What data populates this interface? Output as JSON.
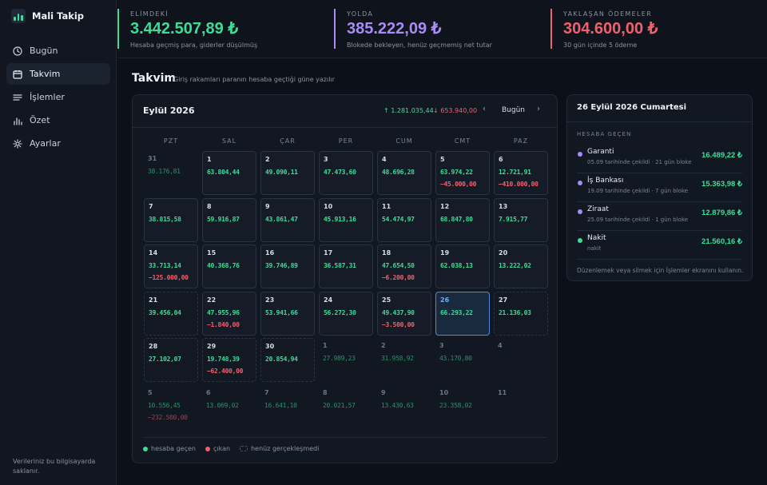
{
  "brand": {
    "name": "Mali Takip"
  },
  "sidebar": {
    "items": [
      {
        "label": "Bugün",
        "icon": "clock-icon"
      },
      {
        "label": "Takvim",
        "icon": "calendar-icon"
      },
      {
        "label": "İşlemler",
        "icon": "list-icon"
      },
      {
        "label": "Özet",
        "icon": "chart-icon"
      },
      {
        "label": "Ayarlar",
        "icon": "gear-icon"
      }
    ],
    "footnote": "Verileriniz bu bilgisayarda saklanır."
  },
  "stats": [
    {
      "label": "ELİMDEKİ",
      "value": "3.442.507,89 ₺",
      "sub": "Hesaba geçmiş para, giderler düşülmüş",
      "color": "#3ddc97"
    },
    {
      "label": "YOLDA",
      "value": "385.222,09 ₺",
      "sub": "Blokede bekleyen, henüz geçmemiş net tutar",
      "color": "#a98bf5"
    },
    {
      "label": "YAKLAŞAN ÖDEMELER",
      "value": "304.600,00 ₺",
      "sub": "30 gün içinde 5 ödeme",
      "color": "#f0616d"
    }
  ],
  "page": {
    "title": "Takvim",
    "subtitle": "Giriş rakamları paranın hesaba geçtiği güne yazılır"
  },
  "calendar": {
    "month": "Eylül 2026",
    "total_in": "↑ 1.281.035,44",
    "total_out": "↓ 653.940,00",
    "prev": "‹",
    "today": "Bugün",
    "next": "›",
    "weekdays": [
      "PZT",
      "SAL",
      "ÇAR",
      "PER",
      "CUM",
      "CMT",
      "PAZ"
    ],
    "days": [
      {
        "n": "31",
        "in": "38.176,81",
        "out": "",
        "state": "outside"
      },
      {
        "n": "1",
        "in": "63.804,44",
        "out": "",
        "state": "normal"
      },
      {
        "n": "2",
        "in": "49.090,11",
        "out": "",
        "state": "normal"
      },
      {
        "n": "3",
        "in": "47.473,60",
        "out": "",
        "state": "normal"
      },
      {
        "n": "4",
        "in": "48.696,28",
        "out": "",
        "state": "normal"
      },
      {
        "n": "5",
        "in": "63.974,22",
        "out": "−45.000,00",
        "state": "normal"
      },
      {
        "n": "6",
        "in": "12.721,91",
        "out": "−410.000,00",
        "state": "normal"
      },
      {
        "n": "7",
        "in": "38.815,58",
        "out": "",
        "state": "normal"
      },
      {
        "n": "8",
        "in": "59.916,87",
        "out": "",
        "state": "normal"
      },
      {
        "n": "9",
        "in": "43.861,47",
        "out": "",
        "state": "normal"
      },
      {
        "n": "10",
        "in": "45.913,16",
        "out": "",
        "state": "normal"
      },
      {
        "n": "11",
        "in": "54.474,97",
        "out": "",
        "state": "normal"
      },
      {
        "n": "12",
        "in": "68.847,80",
        "out": "",
        "state": "normal"
      },
      {
        "n": "13",
        "in": "7.915,77",
        "out": "",
        "state": "normal"
      },
      {
        "n": "14",
        "in": "33.713,14",
        "out": "−125.000,00",
        "state": "normal"
      },
      {
        "n": "15",
        "in": "40.368,76",
        "out": "",
        "state": "normal"
      },
      {
        "n": "16",
        "in": "39.746,89",
        "out": "",
        "state": "normal"
      },
      {
        "n": "17",
        "in": "36.587,31",
        "out": "",
        "state": "normal"
      },
      {
        "n": "18",
        "in": "47.654,50",
        "out": "−6.200,00",
        "state": "normal"
      },
      {
        "n": "19",
        "in": "62.038,13",
        "out": "",
        "state": "normal"
      },
      {
        "n": "20",
        "in": "13.222,02",
        "out": "",
        "state": "normal"
      },
      {
        "n": "21",
        "in": "39.456,04",
        "out": "",
        "state": "dashed"
      },
      {
        "n": "22",
        "in": "47.955,96",
        "out": "−1.840,00",
        "state": "normal"
      },
      {
        "n": "23",
        "in": "53.941,66",
        "out": "",
        "state": "normal"
      },
      {
        "n": "24",
        "in": "56.272,30",
        "out": "",
        "state": "normal"
      },
      {
        "n": "25",
        "in": "49.437,90",
        "out": "−3.500,00",
        "state": "normal"
      },
      {
        "n": "26",
        "in": "66.293,22",
        "out": "",
        "state": "selected"
      },
      {
        "n": "27",
        "in": "21.136,03",
        "out": "",
        "state": "dashed"
      },
      {
        "n": "28",
        "in": "27.102,07",
        "out": "",
        "state": "dashed"
      },
      {
        "n": "29",
        "in": "19.748,39",
        "out": "−62.400,00",
        "state": "dashed"
      },
      {
        "n": "30",
        "in": "20.854,94",
        "out": "",
        "state": "dashed"
      },
      {
        "n": "1",
        "in": "27.989,23",
        "out": "",
        "state": "outside"
      },
      {
        "n": "2",
        "in": "31.958,92",
        "out": "",
        "state": "outside"
      },
      {
        "n": "3",
        "in": "43.170,80",
        "out": "",
        "state": "outside"
      },
      {
        "n": "4",
        "in": "",
        "out": "",
        "state": "outside"
      },
      {
        "n": "5",
        "in": "10.556,45",
        "out": "−232.500,00",
        "state": "outside"
      },
      {
        "n": "6",
        "in": "13.069,02",
        "out": "",
        "state": "outside"
      },
      {
        "n": "7",
        "in": "16.641,10",
        "out": "",
        "state": "outside"
      },
      {
        "n": "8",
        "in": "20.021,57",
        "out": "",
        "state": "outside"
      },
      {
        "n": "9",
        "in": "13.430,63",
        "out": "",
        "state": "outside"
      },
      {
        "n": "10",
        "in": "23.358,02",
        "out": "",
        "state": "outside"
      },
      {
        "n": "11",
        "in": "",
        "out": "",
        "state": "outside"
      }
    ],
    "legend": {
      "in": "hesaba geçen",
      "out": "çıkan",
      "pending": "henüz gerçekleşmedi"
    }
  },
  "detail": {
    "title": "26 Eylül 2026 Cumartesi",
    "section": "HESABA GEÇEN",
    "entries": [
      {
        "bank": "Garanti",
        "note": "05.09 tarihinde çekildi · 21 gün bloke",
        "amount": "16.489,22 ₺",
        "color": "#a98bf5"
      },
      {
        "bank": "İş Bankası",
        "note": "19.09 tarihinde çekildi · 7 gün bloke",
        "amount": "15.363,98 ₺",
        "color": "#a98bf5"
      },
      {
        "bank": "Ziraat",
        "note": "25.09 tarihinde çekildi · 1 gün bloke",
        "amount": "12.879,86 ₺",
        "color": "#a98bf5"
      },
      {
        "bank": "Nakit",
        "note": "nakit",
        "amount": "21.560,16 ₺",
        "color": "#3ddc97"
      }
    ],
    "help": "Düzenlemek veya silmek için İşlemler ekranını kullanın."
  }
}
